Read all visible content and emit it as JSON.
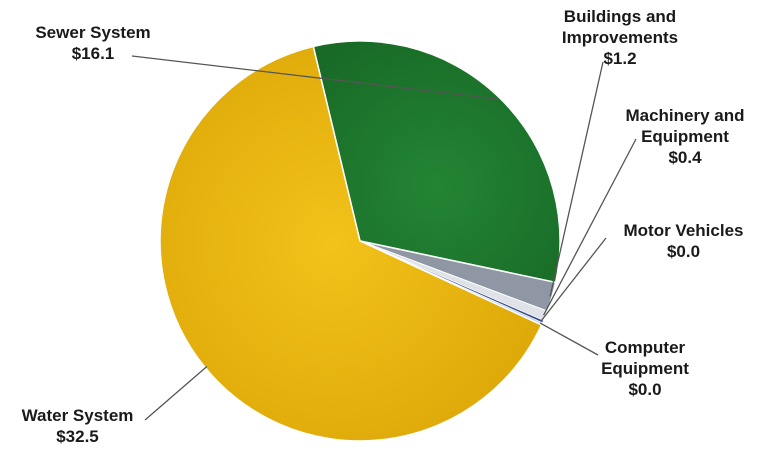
{
  "chart_data": {
    "type": "pie",
    "title": "",
    "slices": [
      {
        "label_lines": [
          "Sewer System"
        ],
        "value_text": "$16.1",
        "value": 16.1,
        "color": "#1f7a2e"
      },
      {
        "label_lines": [
          "Buildings and",
          "Improvements"
        ],
        "value_text": "$1.2",
        "value": 1.2,
        "color": "#8e97a3"
      },
      {
        "label_lines": [
          "Machinery and",
          "Equipment"
        ],
        "value_text": "$0.4",
        "value": 0.4,
        "color": "#dfe3e8"
      },
      {
        "label_lines": [
          "Motor Vehicles"
        ],
        "value_text": "$0.0",
        "value": 0.0,
        "color": "#3a4f8f"
      },
      {
        "label_lines": [
          "Computer",
          "Equipment"
        ],
        "value_text": "$0.0",
        "value": 0.0,
        "color": "#c5d4e8"
      },
      {
        "label_lines": [
          "Water System"
        ],
        "value_text": "$32.5",
        "value": 32.5,
        "color": "#eab90e"
      }
    ]
  }
}
